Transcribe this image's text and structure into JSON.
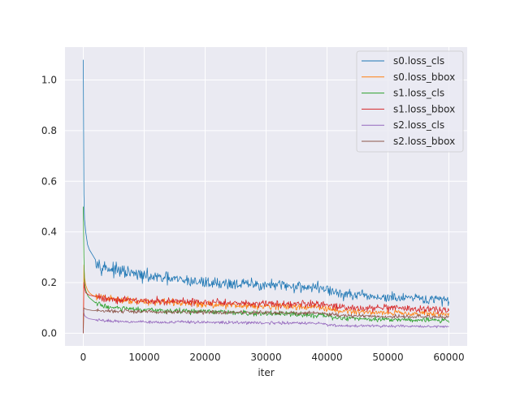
{
  "chart_data": {
    "type": "line",
    "title": "",
    "xlabel": "iter",
    "ylabel": "",
    "xlim": [
      -3000,
      63000
    ],
    "ylim": [
      -0.05,
      1.13
    ],
    "grid": true,
    "background": "#eaeaf2",
    "legend_position": "upper-right",
    "x_ticks": [
      0,
      10000,
      20000,
      30000,
      40000,
      50000,
      60000
    ],
    "x_tick_labels": [
      "0",
      "10000",
      "20000",
      "30000",
      "40000",
      "50000",
      "60000"
    ],
    "y_ticks": [
      0.0,
      0.2,
      0.4,
      0.6,
      0.8,
      1.0
    ],
    "y_tick_labels": [
      "0.0",
      "0.2",
      "0.4",
      "0.6",
      "0.8",
      "1.0"
    ],
    "series": [
      {
        "name": "s0.loss_cls",
        "color": "#1f77b4",
        "noise": 0.013,
        "x": [
          0,
          100,
          200,
          400,
          700,
          1000,
          1500,
          2000,
          3000,
          5000,
          8000,
          10000,
          15000,
          20000,
          25000,
          30000,
          35000,
          39000,
          40000,
          42000,
          45000,
          50000,
          55000,
          60000
        ],
        "y": [
          1.08,
          0.55,
          0.45,
          0.4,
          0.35,
          0.33,
          0.31,
          0.29,
          0.265,
          0.25,
          0.235,
          0.225,
          0.212,
          0.2,
          0.195,
          0.19,
          0.185,
          0.18,
          0.172,
          0.155,
          0.148,
          0.14,
          0.135,
          0.13
        ]
      },
      {
        "name": "s0.loss_bbox",
        "color": "#ff7f0e",
        "noise": 0.007,
        "x": [
          0,
          100,
          200,
          400,
          700,
          1000,
          1500,
          2000,
          3000,
          5000,
          8000,
          10000,
          15000,
          20000,
          25000,
          30000,
          35000,
          39000,
          40000,
          42000,
          45000,
          50000,
          55000,
          60000
        ],
        "y": [
          0.02,
          0.27,
          0.22,
          0.19,
          0.17,
          0.16,
          0.15,
          0.145,
          0.14,
          0.135,
          0.13,
          0.125,
          0.12,
          0.115,
          0.11,
          0.108,
          0.105,
          0.102,
          0.095,
          0.088,
          0.085,
          0.082,
          0.078,
          0.075
        ]
      },
      {
        "name": "s1.loss_cls",
        "color": "#2ca02c",
        "noise": 0.006,
        "x": [
          0,
          100,
          200,
          400,
          700,
          1000,
          1500,
          2000,
          3000,
          5000,
          8000,
          10000,
          15000,
          20000,
          25000,
          30000,
          35000,
          39000,
          40000,
          42000,
          45000,
          50000,
          55000,
          60000
        ],
        "y": [
          0.5,
          0.3,
          0.2,
          0.17,
          0.15,
          0.14,
          0.13,
          0.12,
          0.11,
          0.1,
          0.095,
          0.09,
          0.088,
          0.085,
          0.08,
          0.077,
          0.075,
          0.072,
          0.066,
          0.06,
          0.058,
          0.055,
          0.053,
          0.05
        ]
      },
      {
        "name": "s1.loss_bbox",
        "color": "#d62728",
        "noise": 0.008,
        "x": [
          0,
          100,
          200,
          400,
          700,
          1000,
          1500,
          2000,
          3000,
          5000,
          8000,
          10000,
          15000,
          20000,
          25000,
          30000,
          35000,
          39000,
          40000,
          42000,
          45000,
          50000,
          55000,
          60000
        ],
        "y": [
          0.0,
          0.2,
          0.18,
          0.16,
          0.155,
          0.15,
          0.148,
          0.145,
          0.14,
          0.135,
          0.13,
          0.128,
          0.125,
          0.122,
          0.12,
          0.118,
          0.115,
          0.113,
          0.108,
          0.103,
          0.1,
          0.098,
          0.095,
          0.092
        ]
      },
      {
        "name": "s2.loss_cls",
        "color": "#9467bd",
        "noise": 0.003,
        "x": [
          0,
          100,
          200,
          400,
          700,
          1000,
          1500,
          2000,
          3000,
          5000,
          8000,
          10000,
          15000,
          20000,
          25000,
          30000,
          35000,
          39000,
          40000,
          42000,
          45000,
          50000,
          55000,
          60000
        ],
        "y": [
          0.09,
          0.08,
          0.07,
          0.065,
          0.06,
          0.057,
          0.055,
          0.053,
          0.05,
          0.048,
          0.046,
          0.045,
          0.044,
          0.043,
          0.042,
          0.041,
          0.04,
          0.039,
          0.034,
          0.03,
          0.029,
          0.028,
          0.027,
          0.026
        ]
      },
      {
        "name": "s2.loss_bbox",
        "color": "#8c564b",
        "noise": 0.004,
        "x": [
          0,
          100,
          200,
          400,
          700,
          1000,
          1500,
          2000,
          3000,
          5000,
          8000,
          10000,
          15000,
          20000,
          25000,
          30000,
          35000,
          39000,
          40000,
          42000,
          45000,
          50000,
          55000,
          60000
        ],
        "y": [
          0.0,
          0.1,
          0.098,
          0.095,
          0.093,
          0.092,
          0.09,
          0.089,
          0.088,
          0.087,
          0.086,
          0.085,
          0.084,
          0.083,
          0.082,
          0.081,
          0.08,
          0.08,
          0.075,
          0.07,
          0.068,
          0.066,
          0.065,
          0.064
        ]
      }
    ]
  }
}
